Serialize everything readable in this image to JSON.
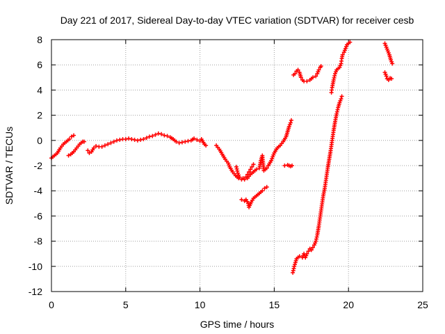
{
  "chart_data": {
    "type": "scatter",
    "title": "Day 221 of 2017, Sidereal Day-to-day VTEC variation (SDTVAR) for receiver cesb",
    "xlabel": "GPS time / hours",
    "ylabel": "SDTVAR / TECUs",
    "xlim": [
      0,
      25
    ],
    "ylim": [
      -12,
      8
    ],
    "x_ticks": [
      "0",
      "5",
      "10",
      "15",
      "20",
      "25"
    ],
    "y_ticks": [
      "-12",
      "-10",
      "-8",
      "-6",
      "-4",
      "-2",
      "0",
      "2",
      "4",
      "6",
      "8"
    ],
    "grid": true,
    "marker": "+",
    "color": "#ff0000",
    "series": [
      {
        "segments": [
          [
            [
              0.0,
              -1.4
            ],
            [
              0.2,
              -1.2
            ],
            [
              0.4,
              -1.0
            ],
            [
              0.6,
              -0.6
            ],
            [
              0.8,
              -0.3
            ],
            [
              1.0,
              -0.1
            ],
            [
              1.2,
              0.1
            ],
            [
              1.35,
              0.3
            ],
            [
              1.5,
              0.4
            ]
          ],
          [
            [
              1.15,
              -1.2
            ],
            [
              1.3,
              -1.1
            ],
            [
              1.5,
              -0.9
            ],
            [
              1.7,
              -0.6
            ],
            [
              1.9,
              -0.3
            ],
            [
              2.1,
              -0.1
            ],
            [
              2.2,
              -0.1
            ]
          ],
          [
            [
              2.45,
              -0.8
            ],
            [
              2.55,
              -1.0
            ],
            [
              2.7,
              -0.9
            ],
            [
              2.85,
              -0.6
            ],
            [
              3.0,
              -0.45
            ],
            [
              3.2,
              -0.5
            ],
            [
              3.4,
              -0.5
            ],
            [
              3.6,
              -0.4
            ],
            [
              3.8,
              -0.3
            ],
            [
              4.0,
              -0.2
            ],
            [
              4.2,
              -0.1
            ],
            [
              4.4,
              0.0
            ],
            [
              4.6,
              0.05
            ],
            [
              4.8,
              0.1
            ],
            [
              5.0,
              0.1
            ],
            [
              5.2,
              0.15
            ],
            [
              5.4,
              0.1
            ],
            [
              5.6,
              0.05
            ],
            [
              5.8,
              0.0
            ],
            [
              6.0,
              0.05
            ],
            [
              6.2,
              0.1
            ],
            [
              6.4,
              0.2
            ],
            [
              6.6,
              0.3
            ],
            [
              6.8,
              0.35
            ],
            [
              7.0,
              0.45
            ],
            [
              7.2,
              0.55
            ],
            [
              7.4,
              0.5
            ],
            [
              7.6,
              0.4
            ],
            [
              7.8,
              0.35
            ],
            [
              8.0,
              0.25
            ],
            [
              8.2,
              0.1
            ],
            [
              8.4,
              -0.1
            ],
            [
              8.6,
              -0.2
            ],
            [
              8.8,
              -0.15
            ],
            [
              9.0,
              -0.1
            ],
            [
              9.2,
              -0.05
            ],
            [
              9.4,
              0.0
            ],
            [
              9.6,
              0.15
            ],
            [
              9.8,
              0.05
            ],
            [
              10.0,
              -0.05
            ],
            [
              10.1,
              0.1
            ],
            [
              10.3,
              -0.3
            ],
            [
              10.4,
              -0.4
            ]
          ],
          [
            [
              11.1,
              -0.4
            ],
            [
              11.3,
              -0.7
            ],
            [
              11.5,
              -1.1
            ],
            [
              11.7,
              -1.5
            ],
            [
              11.9,
              -1.8
            ],
            [
              12.0,
              -2.1
            ],
            [
              12.2,
              -2.5
            ],
            [
              12.4,
              -2.8
            ],
            [
              12.6,
              -3.0
            ],
            [
              12.8,
              -3.1
            ],
            [
              12.9,
              -3.0
            ],
            [
              13.0,
              -3.1
            ],
            [
              13.1,
              -2.9
            ],
            [
              13.2,
              -2.7
            ],
            [
              13.3,
              -2.5
            ],
            [
              13.4,
              -2.3
            ],
            [
              13.5,
              -2.1
            ],
            [
              13.6,
              -1.9
            ]
          ],
          [
            [
              12.45,
              -2.1
            ],
            [
              12.55,
              -2.6
            ],
            [
              12.65,
              -2.9
            ]
          ],
          [
            [
              13.2,
              -3.0
            ],
            [
              13.4,
              -2.7
            ],
            [
              13.6,
              -2.5
            ],
            [
              13.8,
              -2.3
            ],
            [
              14.0,
              -2.2
            ],
            [
              14.1,
              -1.6
            ],
            [
              14.2,
              -1.2
            ],
            [
              14.3,
              -2.4
            ],
            [
              14.4,
              -2.3
            ],
            [
              14.5,
              -2.2
            ],
            [
              14.6,
              -2.0
            ],
            [
              14.8,
              -1.6
            ],
            [
              15.0,
              -1.0
            ],
            [
              15.2,
              -0.6
            ],
            [
              15.4,
              -0.4
            ],
            [
              15.6,
              -0.1
            ],
            [
              15.8,
              0.3
            ],
            [
              15.9,
              0.7
            ],
            [
              16.0,
              1.1
            ],
            [
              16.1,
              1.4
            ],
            [
              16.15,
              1.6
            ]
          ],
          [
            [
              12.8,
              -4.7
            ],
            [
              13.0,
              -4.8
            ],
            [
              13.1,
              -4.7
            ],
            [
              13.25,
              -5.0
            ],
            [
              13.3,
              -5.3
            ],
            [
              13.45,
              -4.9
            ],
            [
              13.6,
              -4.6
            ],
            [
              13.8,
              -4.4
            ],
            [
              14.0,
              -4.2
            ],
            [
              14.2,
              -4.0
            ],
            [
              14.35,
              -3.8
            ],
            [
              14.5,
              -3.7
            ]
          ],
          [
            [
              15.7,
              -2.0
            ],
            [
              15.9,
              -1.95
            ],
            [
              16.0,
              -2.0
            ],
            [
              16.1,
              -2.05
            ],
            [
              16.2,
              -2.0
            ]
          ],
          [
            [
              16.25,
              -10.5
            ],
            [
              16.35,
              -10.0
            ],
            [
              16.5,
              -9.4
            ],
            [
              16.7,
              -9.2
            ],
            [
              16.9,
              -9.3
            ],
            [
              17.0,
              -9.0
            ],
            [
              17.1,
              -9.3
            ],
            [
              17.2,
              -9.0
            ],
            [
              17.3,
              -8.8
            ],
            [
              17.4,
              -8.6
            ],
            [
              17.5,
              -8.7
            ],
            [
              17.6,
              -8.5
            ],
            [
              17.7,
              -8.3
            ],
            [
              17.8,
              -8.0
            ],
            [
              17.9,
              -7.5
            ],
            [
              18.0,
              -6.8
            ],
            [
              18.1,
              -6.0
            ],
            [
              18.2,
              -5.2
            ],
            [
              18.3,
              -4.4
            ],
            [
              18.4,
              -3.8
            ],
            [
              18.5,
              -3.0
            ],
            [
              18.6,
              -2.2
            ],
            [
              18.7,
              -1.5
            ],
            [
              18.8,
              -0.8
            ],
            [
              18.9,
              0.0
            ],
            [
              19.0,
              0.8
            ],
            [
              19.1,
              1.5
            ],
            [
              19.2,
              2.1
            ],
            [
              19.3,
              2.6
            ],
            [
              19.4,
              3.0
            ],
            [
              19.5,
              3.3
            ],
            [
              19.55,
              3.5
            ]
          ],
          [
            [
              16.3,
              5.2
            ],
            [
              16.4,
              5.3
            ],
            [
              16.5,
              5.5
            ],
            [
              16.6,
              5.6
            ],
            [
              16.7,
              5.4
            ],
            [
              16.8,
              5.0
            ],
            [
              16.9,
              4.8
            ],
            [
              17.0,
              4.7
            ],
            [
              17.2,
              4.7
            ],
            [
              17.4,
              4.8
            ],
            [
              17.6,
              5.0
            ],
            [
              17.8,
              5.1
            ],
            [
              17.9,
              5.3
            ],
            [
              18.0,
              5.6
            ],
            [
              18.1,
              5.8
            ],
            [
              18.15,
              5.9
            ]
          ],
          [
            [
              18.85,
              3.8
            ],
            [
              18.9,
              4.2
            ],
            [
              19.0,
              4.8
            ],
            [
              19.1,
              5.3
            ],
            [
              19.2,
              5.6
            ],
            [
              19.3,
              5.7
            ],
            [
              19.4,
              5.8
            ],
            [
              19.5,
              6.1
            ],
            [
              19.55,
              6.5
            ],
            [
              19.6,
              6.8
            ],
            [
              19.7,
              7.0
            ],
            [
              19.8,
              7.3
            ],
            [
              19.9,
              7.6
            ],
            [
              20.0,
              7.7
            ],
            [
              20.1,
              7.8
            ]
          ],
          [
            [
              22.45,
              7.7
            ],
            [
              22.55,
              7.4
            ],
            [
              22.65,
              7.1
            ],
            [
              22.75,
              6.8
            ],
            [
              22.85,
              6.4
            ],
            [
              22.95,
              6.1
            ]
          ],
          [
            [
              22.45,
              5.4
            ],
            [
              22.55,
              5.1
            ],
            [
              22.6,
              4.9
            ],
            [
              22.7,
              4.8
            ],
            [
              22.8,
              4.95
            ],
            [
              22.9,
              4.9
            ]
          ]
        ]
      }
    ]
  }
}
